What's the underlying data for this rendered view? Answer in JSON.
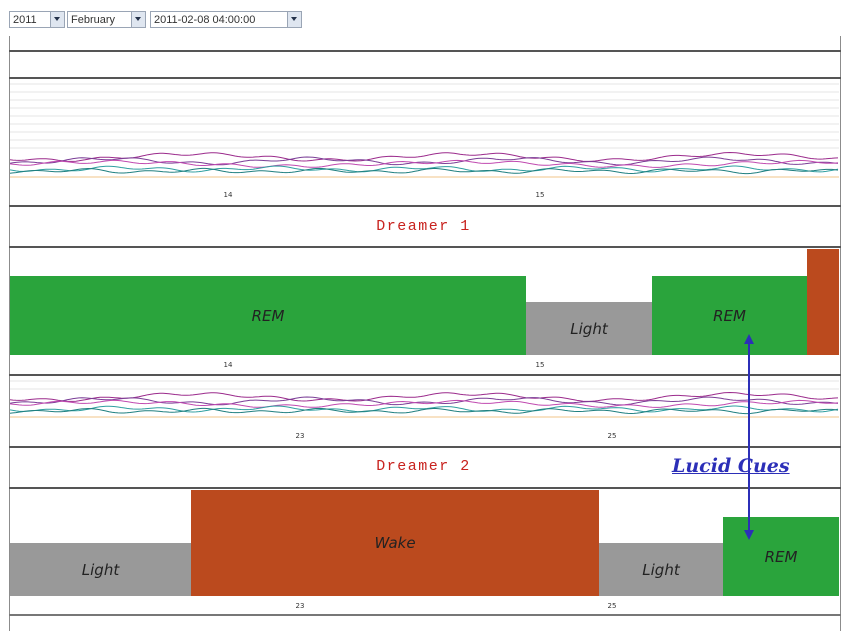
{
  "toolbar": {
    "year": "2011",
    "month": "February",
    "datetime": "2011-02-08 04:00:00"
  },
  "panel1": {
    "eeg_ticks": [
      "14",
      "15"
    ],
    "title": "Dreamer 1",
    "stages": [
      {
        "stage": "REM",
        "label": "REM",
        "start": 0.0,
        "end": 0.623,
        "level": "high"
      },
      {
        "stage": "Light",
        "label": "Light",
        "start": 0.623,
        "end": 0.774,
        "level": "low"
      },
      {
        "stage": "REM",
        "label": "REM",
        "start": 0.774,
        "end": 0.962,
        "level": "high"
      },
      {
        "stage": "Wake",
        "label": "",
        "start": 0.962,
        "end": 1.0,
        "level": "top"
      }
    ],
    "hypno_ticks": [
      "14",
      "15"
    ]
  },
  "panel2": {
    "eeg_ticks": [
      "23",
      "25"
    ],
    "title": "Dreamer 2",
    "stages": [
      {
        "stage": "Light",
        "label": "Light",
        "start": 0.0,
        "end": 0.218,
        "level": "low"
      },
      {
        "stage": "Wake",
        "label": "Wake",
        "start": 0.218,
        "end": 0.71,
        "level": "top"
      },
      {
        "stage": "Light",
        "label": "Light",
        "start": 0.71,
        "end": 0.86,
        "level": "low"
      },
      {
        "stage": "REM",
        "label": "REM",
        "start": 0.86,
        "end": 1.0,
        "level": "high"
      }
    ],
    "hypno_ticks": [
      "23",
      "25"
    ]
  },
  "annotation": {
    "label": "Lucid Cues",
    "color": "#2c2fb8"
  },
  "colors": {
    "rem": "#2aa43c",
    "light": "#999999",
    "wake": "#bb4a1e",
    "title": "#c8221e"
  }
}
